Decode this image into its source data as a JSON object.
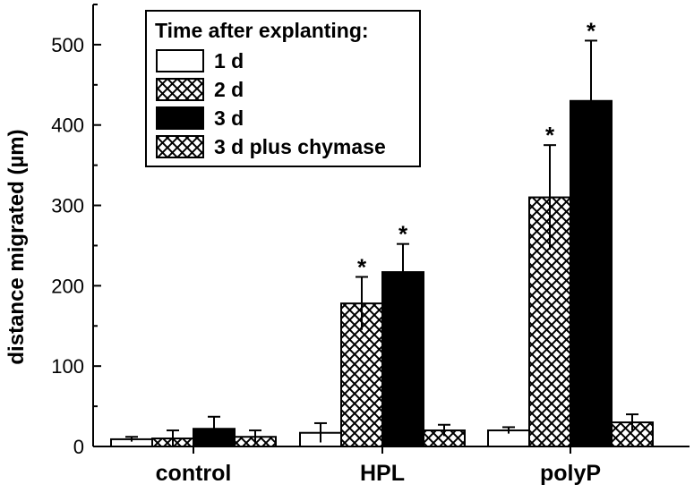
{
  "chart_data": {
    "type": "bar",
    "title": "",
    "xlabel": "",
    "ylabel": "distance migrated (µm)",
    "ylim": [
      0,
      550
    ],
    "yticks": [
      0,
      100,
      200,
      300,
      400,
      500
    ],
    "categories": [
      "control",
      "HPL",
      "polyP"
    ],
    "legend": {
      "title": "Time after explanting:",
      "placement": "top-left"
    },
    "series": [
      {
        "name": "1 d",
        "pattern": "open",
        "values": [
          9,
          17,
          20
        ],
        "errors": [
          3,
          12,
          4
        ],
        "significant": [
          false,
          false,
          false
        ]
      },
      {
        "name": "2 d",
        "pattern": "crosshatch",
        "values": [
          10,
          178,
          310
        ],
        "errors": [
          10,
          33,
          65
        ],
        "significant": [
          false,
          true,
          true
        ]
      },
      {
        "name": "3 d",
        "pattern": "solid",
        "values": [
          22,
          217,
          430
        ],
        "errors": [
          15,
          35,
          75
        ],
        "significant": [
          false,
          true,
          true
        ]
      },
      {
        "name": "3 d plus chymase",
        "pattern": "crosshatch",
        "values": [
          12,
          20,
          30
        ],
        "errors": [
          8,
          7,
          10
        ],
        "significant": [
          false,
          false,
          false
        ]
      }
    ],
    "significance_marker": "*",
    "colors": {
      "fill_open": "#ffffff",
      "fill_solid": "#000000",
      "stroke": "#000000"
    }
  }
}
